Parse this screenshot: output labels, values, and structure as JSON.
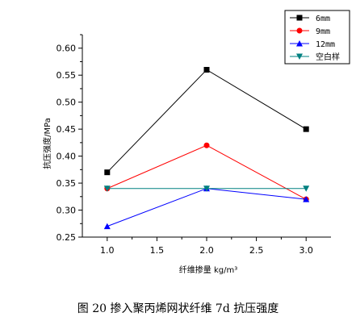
{
  "chart_data": {
    "type": "line",
    "xlabel": "纤维掺量 kg/m³",
    "ylabel": "抗压强度/MPa",
    "xlim": [
      0.75,
      3.25
    ],
    "ylim": [
      0.25,
      0.625
    ],
    "x_ticks": [
      "1.0",
      "1.5",
      "2.0",
      "2.5",
      "3.0"
    ],
    "y_ticks": [
      "0.25",
      "0.30",
      "0.35",
      "0.40",
      "0.45",
      "0.50",
      "0.55",
      "0.60"
    ],
    "x": [
      1.0,
      2.0,
      3.0
    ],
    "series": [
      {
        "name": "6mm",
        "values": [
          0.37,
          0.56,
          0.45
        ],
        "color": "#000000",
        "marker": "square"
      },
      {
        "name": "9mm",
        "values": [
          0.34,
          0.42,
          0.32
        ],
        "color": "#ff0000",
        "marker": "circle"
      },
      {
        "name": "12mm",
        "values": [
          0.27,
          0.34,
          0.32
        ],
        "color": "#0000ff",
        "marker": "triangle-up"
      },
      {
        "name": "空白样",
        "values": [
          0.34,
          0.34,
          0.34
        ],
        "color": "#008080",
        "marker": "triangle-down"
      }
    ],
    "grid": false,
    "legend_position": "top-right"
  },
  "caption": "图 20 掺入聚丙烯网状纤维 7d 抗压强度"
}
